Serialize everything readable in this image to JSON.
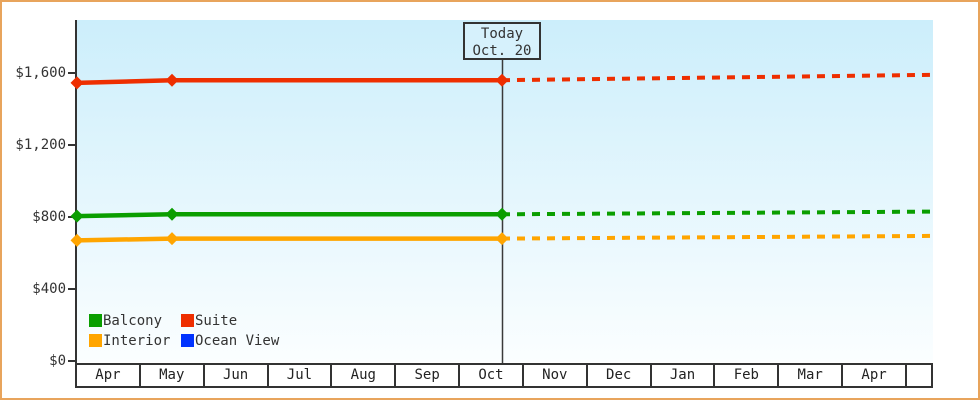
{
  "frame": {
    "border_color": "#e8a45c",
    "background": "#ffffff"
  },
  "today_box": {
    "line1": "Today",
    "line2": "Oct. 20"
  },
  "chart_data": {
    "type": "line",
    "title": "",
    "y_axis": {
      "tick_labels": [
        "$0",
        "$400",
        "$800",
        "$1,200",
        "$1,600"
      ],
      "tick_values": [
        0,
        400,
        800,
        1200,
        1600
      ],
      "ylim": [
        0,
        1900
      ],
      "grid": false
    },
    "x_axis": {
      "month_labels": [
        "Apr",
        "May",
        "Jun",
        "Jul",
        "Aug",
        "Sep",
        "Oct",
        "Nov",
        "Dec",
        "Jan",
        "Feb",
        "Mar",
        "Apr"
      ]
    },
    "today_marker": {
      "label": "Today",
      "date": "Oct. 20",
      "month": "Oct"
    },
    "plot_background_top": "#cceefb",
    "plot_background_bottom": "#fbfeff",
    "series": [
      {
        "name": "Interior",
        "color": "#ffa500",
        "observed": [
          {
            "month": "Apr",
            "value": 670
          },
          {
            "month": "May",
            "value": 680
          },
          {
            "month": "Oct 20",
            "value": 680
          }
        ],
        "projected_end_value": 695
      },
      {
        "name": "Balcony",
        "color": "#0a9e00",
        "observed": [
          {
            "month": "Apr",
            "value": 805
          },
          {
            "month": "May",
            "value": 815
          },
          {
            "month": "Oct 20",
            "value": 815
          }
        ],
        "projected_end_value": 830
      },
      {
        "name": "Suite",
        "color": "#ee2e00",
        "observed": [
          {
            "month": "Apr",
            "value": 1545
          },
          {
            "month": "May",
            "value": 1560
          },
          {
            "month": "Oct 20",
            "value": 1560
          }
        ],
        "projected_end_value": 1590
      },
      {
        "name": "Ocean View",
        "color": "#0033ff",
        "observed": [],
        "projected_end_value": null
      }
    ],
    "legend": {
      "position": "bottom-left-inside",
      "order": [
        "Balcony",
        "Suite",
        "Interior",
        "Ocean View"
      ]
    }
  }
}
